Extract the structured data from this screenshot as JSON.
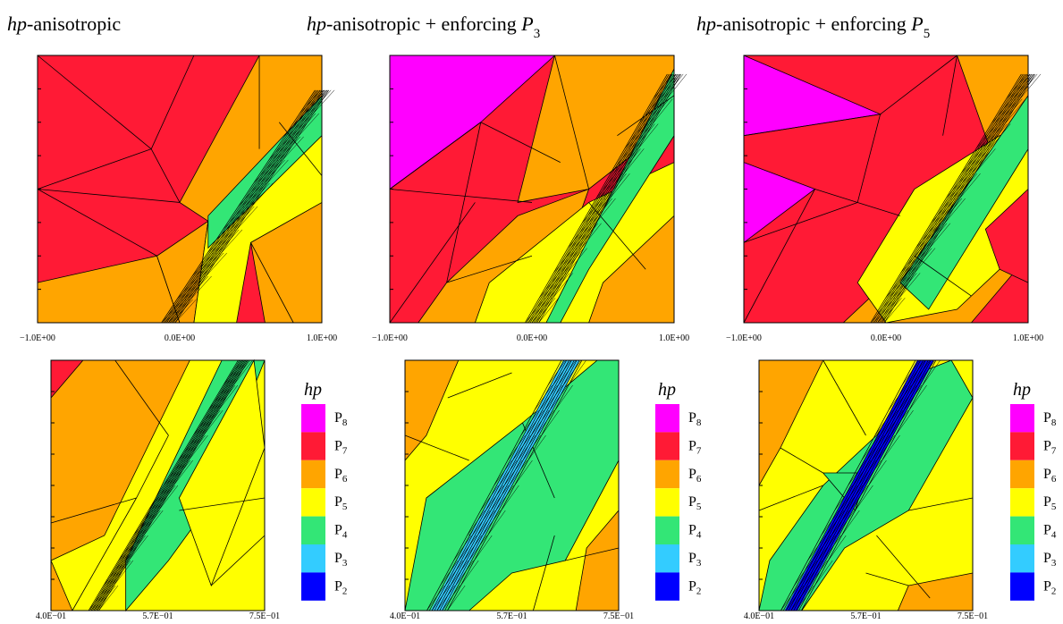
{
  "panels": [
    {
      "title": [
        {
          "text": "hp",
          "style": "italic"
        },
        {
          "text": "-anisotropic",
          "style": "normal"
        }
      ],
      "xticks": [
        "−1.0E+00",
        "0.0E+00",
        "1.0E+00"
      ]
    },
    {
      "title": [
        {
          "text": "hp",
          "style": "italic"
        },
        {
          "text": "-anisotropic + enforcing ",
          "style": "normal"
        },
        {
          "text": "P",
          "style": "italic"
        },
        {
          "text": "3",
          "style": "sub"
        }
      ],
      "xticks": [
        "−1.0E+00",
        "0.0E+00",
        "1.0E+00"
      ]
    },
    {
      "title": [
        {
          "text": "hp",
          "style": "italic"
        },
        {
          "text": "-anisotropic + enforcing ",
          "style": "normal"
        },
        {
          "text": "P",
          "style": "italic"
        },
        {
          "text": "5",
          "style": "sub"
        }
      ],
      "xticks": [
        "−1.0E+00",
        "0.0E+00",
        "1.0E+00"
      ]
    }
  ],
  "zoom_panels": [
    {
      "xticks": [
        "4.0E−01",
        "5.7E−01",
        "7.5E−01"
      ]
    },
    {
      "xticks": [
        "4.0E−01",
        "5.7E−01",
        "7.5E−01"
      ]
    },
    {
      "xticks": [
        "4.0E−01",
        "5.7E−01",
        "7.5E−01"
      ]
    }
  ],
  "legend": {
    "title": "hp",
    "items": [
      {
        "base": "P",
        "sub": "8",
        "color": "#ff00ff"
      },
      {
        "base": "P",
        "sub": "7",
        "color": "#ff1a35"
      },
      {
        "base": "P",
        "sub": "6",
        "color": "#ffa500"
      },
      {
        "base": "P",
        "sub": "5",
        "color": "#ffff00"
      },
      {
        "base": "P",
        "sub": "4",
        "color": "#33e676"
      },
      {
        "base": "P",
        "sub": "3",
        "color": "#33ccff"
      },
      {
        "base": "P",
        "sub": "2",
        "color": "#0000ff"
      }
    ]
  }
}
